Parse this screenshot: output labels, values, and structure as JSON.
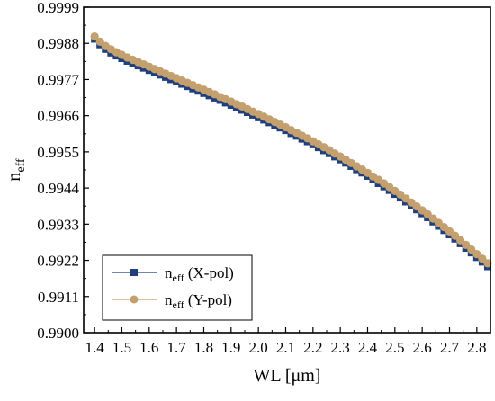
{
  "chart_data": {
    "type": "line",
    "xlabel": "WL  [μm]",
    "ylabel_main": "n",
    "ylabel_sub": "eff",
    "xlim": [
      1.36,
      2.85
    ],
    "ylim": [
      0.99,
      0.9999
    ],
    "xticks": [
      "1.4",
      "1.5",
      "1.6",
      "1.7",
      "1.8",
      "1.9",
      "2.0",
      "2.1",
      "2.2",
      "2.3",
      "2.4",
      "2.5",
      "2.6",
      "2.7",
      "2.8"
    ],
    "yticks": [
      "0.9900",
      "0.9911",
      "0.9922",
      "0.9933",
      "0.9944",
      "0.9955",
      "0.9966",
      "0.9977",
      "0.9988",
      "0.9999"
    ],
    "legend_position": "bottom-left",
    "grid": false,
    "x": [
      1.4,
      1.42,
      1.44,
      1.46,
      1.48,
      1.5,
      1.52,
      1.54,
      1.56,
      1.58,
      1.6,
      1.62,
      1.64,
      1.66,
      1.68,
      1.7,
      1.72,
      1.74,
      1.76,
      1.78,
      1.8,
      1.82,
      1.84,
      1.86,
      1.88,
      1.9,
      1.92,
      1.94,
      1.96,
      1.98,
      2.0,
      2.02,
      2.04,
      2.06,
      2.08,
      2.1,
      2.12,
      2.14,
      2.16,
      2.18,
      2.2,
      2.22,
      2.24,
      2.26,
      2.28,
      2.3,
      2.32,
      2.34,
      2.36,
      2.38,
      2.4,
      2.42,
      2.44,
      2.46,
      2.48,
      2.5,
      2.52,
      2.54,
      2.56,
      2.58,
      2.6,
      2.62,
      2.64,
      2.66,
      2.68,
      2.7,
      2.72,
      2.74,
      2.76,
      2.78,
      2.8,
      2.82,
      2.84
    ],
    "series": [
      {
        "name_main": "n",
        "name_sub": "eff",
        "name_rest": " (X-pol)",
        "color": "#1f3f7f",
        "marker": "square",
        "values": [
          0.99893,
          0.99876,
          0.99862,
          0.99851,
          0.99842,
          0.99834,
          0.99826,
          0.99819,
          0.99812,
          0.99805,
          0.99798,
          0.99791,
          0.99784,
          0.99777,
          0.9977,
          0.99763,
          0.99756,
          0.99749,
          0.99742,
          0.99735,
          0.99728,
          0.99721,
          0.99714,
          0.99707,
          0.99699,
          0.99692,
          0.99685,
          0.99677,
          0.9967,
          0.99662,
          0.99654,
          0.99647,
          0.99639,
          0.99631,
          0.99623,
          0.99615,
          0.99606,
          0.99598,
          0.99589,
          0.99581,
          0.99572,
          0.99563,
          0.99554,
          0.99545,
          0.99535,
          0.99526,
          0.99516,
          0.99506,
          0.99496,
          0.99486,
          0.99476,
          0.99465,
          0.99454,
          0.99444,
          0.99433,
          0.99421,
          0.9941,
          0.99398,
          0.99386,
          0.99374,
          0.99362,
          0.9935,
          0.99337,
          0.99324,
          0.99311,
          0.99298,
          0.99285,
          0.99271,
          0.99257,
          0.99243,
          0.99229,
          0.99215,
          0.99201
        ]
      },
      {
        "name_main": "n",
        "name_sub": "eff",
        "name_rest": " (Y-pol)",
        "color": "#c4a06e",
        "marker": "circle",
        "values": [
          0.99901,
          0.99885,
          0.99872,
          0.99862,
          0.99853,
          0.99845,
          0.99837,
          0.9983,
          0.99823,
          0.99816,
          0.99809,
          0.99802,
          0.99795,
          0.99788,
          0.99781,
          0.99774,
          0.99767,
          0.9976,
          0.99753,
          0.99746,
          0.99739,
          0.99732,
          0.99725,
          0.99717,
          0.9971,
          0.99703,
          0.99695,
          0.99688,
          0.9968,
          0.99672,
          0.99665,
          0.99657,
          0.99649,
          0.99641,
          0.99633,
          0.99625,
          0.99616,
          0.99608,
          0.99599,
          0.99591,
          0.99582,
          0.99573,
          0.99564,
          0.99555,
          0.99545,
          0.99536,
          0.99526,
          0.99516,
          0.99506,
          0.99496,
          0.99486,
          0.99475,
          0.99465,
          0.99454,
          0.99443,
          0.99431,
          0.9942,
          0.99408,
          0.99396,
          0.99384,
          0.99372,
          0.9936,
          0.99347,
          0.99334,
          0.99321,
          0.99308,
          0.99295,
          0.99281,
          0.99267,
          0.99253,
          0.99239,
          0.99225,
          0.99211
        ]
      }
    ]
  }
}
